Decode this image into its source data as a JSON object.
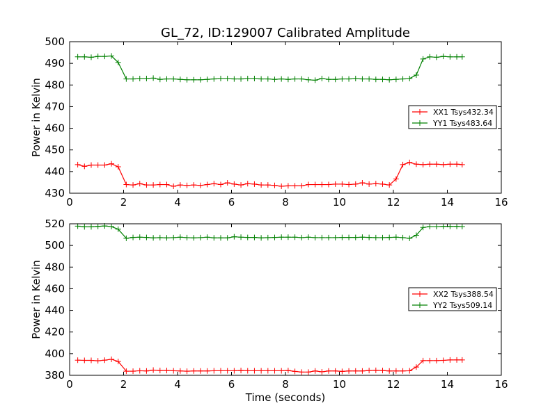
{
  "title": "GL_72, ID:129007 Calibrated Amplitude",
  "chart_data": [
    {
      "type": "line",
      "xlabel": "",
      "ylabel": "Power in Kelvin",
      "xlim": [
        0,
        16
      ],
      "ylim": [
        430,
        500
      ],
      "xticks": [
        "0",
        "2",
        "4",
        "6",
        "8",
        "10",
        "12",
        "14",
        "16"
      ],
      "yticks": [
        "430",
        "440",
        "450",
        "460",
        "470",
        "480",
        "490",
        "500"
      ],
      "grid": false,
      "legend_position": "right",
      "series": [
        {
          "name": "XX1 Tsys432.34",
          "color": "#ff0000",
          "marker": "plus",
          "x": [
            0.3,
            0.55,
            0.8,
            1.05,
            1.3,
            1.55,
            1.8,
            2.1,
            2.35,
            2.6,
            2.85,
            3.1,
            3.35,
            3.6,
            3.85,
            4.1,
            4.35,
            4.6,
            4.85,
            5.1,
            5.35,
            5.6,
            5.85,
            6.1,
            6.35,
            6.6,
            6.85,
            7.1,
            7.35,
            7.6,
            7.85,
            8.1,
            8.35,
            8.6,
            8.85,
            9.1,
            9.35,
            9.6,
            9.85,
            10.1,
            10.35,
            10.6,
            10.85,
            11.1,
            11.35,
            11.6,
            11.85,
            12.1,
            12.35,
            12.6,
            12.85,
            13.1,
            13.35,
            13.6,
            13.85,
            14.1,
            14.35,
            14.55
          ],
          "y": [
            443.2,
            442.4,
            443.0,
            443.0,
            443.0,
            443.6,
            442.2,
            434.0,
            433.8,
            434.4,
            433.8,
            433.8,
            434.0,
            434.0,
            433.2,
            433.8,
            433.6,
            433.8,
            433.6,
            434.0,
            434.4,
            434.0,
            434.8,
            434.2,
            433.8,
            434.4,
            434.2,
            433.8,
            433.8,
            433.6,
            433.2,
            433.4,
            433.4,
            433.4,
            434.0,
            434.0,
            434.0,
            434.0,
            434.2,
            434.2,
            434.0,
            434.2,
            434.8,
            434.2,
            434.4,
            434.2,
            433.8,
            436.6,
            443.2,
            444.2,
            443.4,
            443.2,
            443.4,
            443.4,
            443.2,
            443.4,
            443.4,
            443.2
          ]
        },
        {
          "name": "YY1 Tsys483.64",
          "color": "#008000",
          "marker": "plus",
          "x": [
            0.3,
            0.55,
            0.8,
            1.05,
            1.3,
            1.55,
            1.8,
            2.1,
            2.35,
            2.6,
            2.85,
            3.1,
            3.35,
            3.6,
            3.85,
            4.1,
            4.35,
            4.6,
            4.85,
            5.1,
            5.35,
            5.6,
            5.85,
            6.1,
            6.35,
            6.6,
            6.85,
            7.1,
            7.35,
            7.6,
            7.85,
            8.1,
            8.35,
            8.6,
            8.85,
            9.1,
            9.35,
            9.6,
            9.85,
            10.1,
            10.35,
            10.6,
            10.85,
            11.1,
            11.35,
            11.6,
            11.85,
            12.1,
            12.35,
            12.6,
            12.85,
            13.1,
            13.35,
            13.6,
            13.85,
            14.1,
            14.35,
            14.55
          ],
          "y": [
            493.0,
            493.0,
            492.8,
            493.2,
            493.2,
            493.4,
            490.4,
            482.8,
            482.8,
            483.0,
            483.0,
            483.2,
            482.6,
            482.8,
            482.8,
            482.6,
            482.4,
            482.4,
            482.4,
            482.6,
            482.8,
            483.0,
            483.0,
            482.8,
            482.8,
            483.0,
            483.0,
            482.8,
            482.8,
            482.6,
            482.8,
            482.6,
            482.8,
            482.8,
            482.4,
            482.2,
            483.0,
            482.6,
            482.6,
            482.8,
            482.8,
            483.0,
            482.8,
            482.8,
            482.6,
            482.6,
            482.4,
            482.6,
            482.8,
            483.0,
            484.6,
            492.0,
            493.0,
            492.8,
            493.2,
            493.0,
            493.0,
            493.0
          ]
        }
      ]
    },
    {
      "type": "line",
      "xlabel": "Time (seconds)",
      "ylabel": "Power in Kelvin",
      "xlim": [
        0,
        16
      ],
      "ylim": [
        380,
        520
      ],
      "xticks": [
        "0",
        "2",
        "4",
        "6",
        "8",
        "10",
        "12",
        "14",
        "16"
      ],
      "yticks": [
        "380",
        "400",
        "420",
        "440",
        "460",
        "480",
        "500",
        "520"
      ],
      "grid": false,
      "legend_position": "right",
      "series": [
        {
          "name": "XX2 Tsys388.54",
          "color": "#ff0000",
          "marker": "plus",
          "x": [
            0.3,
            0.55,
            0.8,
            1.05,
            1.3,
            1.55,
            1.8,
            2.1,
            2.35,
            2.6,
            2.85,
            3.1,
            3.35,
            3.6,
            3.85,
            4.1,
            4.35,
            4.6,
            4.85,
            5.1,
            5.35,
            5.6,
            5.85,
            6.1,
            6.35,
            6.6,
            6.85,
            7.1,
            7.35,
            7.6,
            7.85,
            8.1,
            8.35,
            8.6,
            8.85,
            9.1,
            9.35,
            9.6,
            9.85,
            10.1,
            10.35,
            10.6,
            10.85,
            11.1,
            11.35,
            11.6,
            11.85,
            12.1,
            12.35,
            12.6,
            12.85,
            13.1,
            13.35,
            13.6,
            13.85,
            14.1,
            14.35,
            14.55
          ],
          "y": [
            394.0,
            393.8,
            393.8,
            393.4,
            394.0,
            394.8,
            392.8,
            383.8,
            383.8,
            384.2,
            384.0,
            384.8,
            384.4,
            384.4,
            384.2,
            384.0,
            383.8,
            384.0,
            384.0,
            384.0,
            384.2,
            384.2,
            384.2,
            384.2,
            384.4,
            384.2,
            384.2,
            384.2,
            384.2,
            384.2,
            384.2,
            384.4,
            383.6,
            383.0,
            383.0,
            384.0,
            383.2,
            384.0,
            384.0,
            383.6,
            384.0,
            384.0,
            384.0,
            384.4,
            384.6,
            384.4,
            384.0,
            384.0,
            384.0,
            384.2,
            387.6,
            393.6,
            393.6,
            393.6,
            393.8,
            394.2,
            394.2,
            394.2
          ]
        },
        {
          "name": "YY2 Tsys509.14",
          "color": "#008000",
          "marker": "plus",
          "x": [
            0.3,
            0.55,
            0.8,
            1.05,
            1.3,
            1.55,
            1.8,
            2.1,
            2.35,
            2.6,
            2.85,
            3.1,
            3.35,
            3.6,
            3.85,
            4.1,
            4.35,
            4.6,
            4.85,
            5.1,
            5.35,
            5.6,
            5.85,
            6.1,
            6.35,
            6.6,
            6.85,
            7.1,
            7.35,
            7.6,
            7.85,
            8.1,
            8.35,
            8.6,
            8.85,
            9.1,
            9.35,
            9.6,
            9.85,
            10.1,
            10.35,
            10.6,
            10.85,
            11.1,
            11.35,
            11.6,
            11.85,
            12.1,
            12.35,
            12.6,
            12.85,
            13.1,
            13.35,
            13.6,
            13.85,
            14.1,
            14.35,
            14.55
          ],
          "y": [
            517.8,
            517.2,
            517.2,
            517.6,
            518.0,
            517.4,
            515.0,
            506.6,
            507.4,
            507.6,
            507.4,
            507.0,
            507.2,
            507.0,
            507.2,
            507.6,
            507.2,
            507.0,
            507.2,
            507.6,
            507.0,
            507.0,
            507.0,
            508.0,
            507.6,
            507.4,
            507.4,
            507.0,
            507.2,
            507.4,
            507.6,
            507.6,
            507.6,
            507.2,
            507.6,
            507.2,
            507.2,
            507.2,
            507.2,
            507.4,
            507.4,
            507.4,
            507.6,
            507.4,
            507.2,
            507.2,
            507.4,
            507.6,
            507.2,
            506.6,
            509.4,
            516.6,
            517.4,
            517.4,
            517.6,
            517.6,
            517.6,
            517.4
          ]
        }
      ]
    }
  ]
}
